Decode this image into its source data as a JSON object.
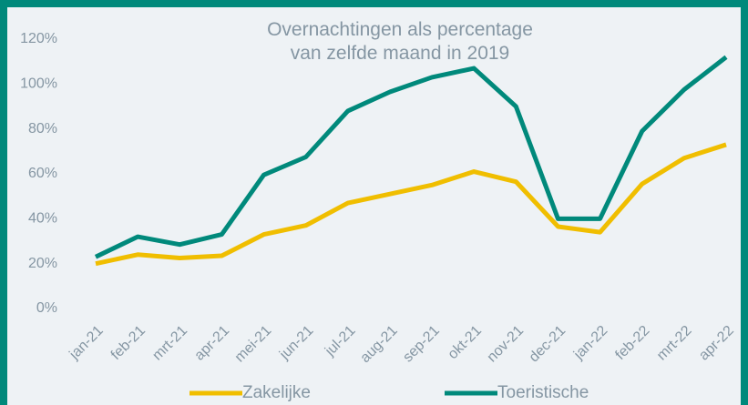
{
  "chart_data": {
    "type": "line",
    "title": "Overnachtingen als percentage van zelfde maand in 2019",
    "categories": [
      "jan-21",
      "feb-21",
      "mrt-21",
      "apr-21",
      "mei-21",
      "jun-21",
      "jul-21",
      "aug-21",
      "sep-21",
      "okt-21",
      "nov-21",
      "dec-21",
      "jan-22",
      "feb-22",
      "mrt-22",
      "apr-22"
    ],
    "series": [
      {
        "name": "Zakelijke",
        "color": "#f0be00",
        "values": [
          20,
          24,
          22.5,
          23.5,
          33,
          37,
          47,
          51,
          55,
          61,
          56.5,
          36.5,
          34,
          55.5,
          67,
          73
        ]
      },
      {
        "name": "Toeristische",
        "color": "#00897b",
        "values": [
          23,
          32,
          28.5,
          33,
          59.5,
          67.5,
          88,
          96.5,
          103,
          107,
          90,
          40,
          40,
          79,
          97.5,
          112
        ]
      }
    ],
    "ylim": [
      0,
      120
    ],
    "yticks": [
      {
        "value": 0,
        "label": "0%"
      },
      {
        "value": 20,
        "label": "20%"
      },
      {
        "value": 40,
        "label": "40%"
      },
      {
        "value": 60,
        "label": "60%"
      },
      {
        "value": 80,
        "label": "80%"
      },
      {
        "value": 100,
        "label": "100%"
      },
      {
        "value": 120,
        "label": "120%"
      }
    ],
    "grid": false,
    "legend": "bottom"
  }
}
